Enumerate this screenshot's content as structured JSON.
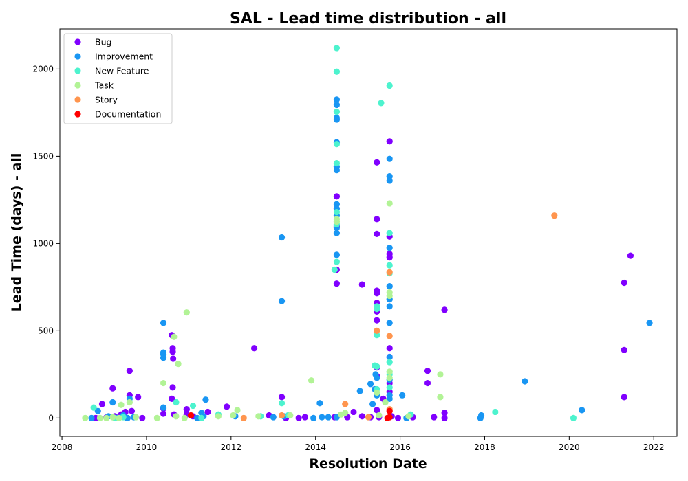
{
  "chart_data": {
    "type": "scatter",
    "title": "SAL - Lead time distribution - all",
    "xlabel": "Resolution Date",
    "ylabel": "Lead Time (days) - all",
    "xlim": [
      2007.95,
      2022.55
    ],
    "ylim": [
      -105,
      2230
    ],
    "xticks": [
      2008,
      2010,
      2012,
      2014,
      2016,
      2018,
      2020,
      2022
    ],
    "xtick_labels": [
      "2008",
      "2010",
      "2012",
      "2014",
      "2016",
      "2018",
      "2020",
      "2022"
    ],
    "yticks": [
      0,
      500,
      1000,
      1500,
      2000
    ],
    "ytick_labels": [
      "0",
      "500",
      "1000",
      "1500",
      "2000"
    ],
    "legend_position": "top-left",
    "series": [
      {
        "name": "Bug",
        "color": "#8000ff",
        "points": [
          [
            2008.8,
            0
          ],
          [
            2008.95,
            80
          ],
          [
            2009.05,
            3
          ],
          [
            2009.2,
            170
          ],
          [
            2009.25,
            10
          ],
          [
            2009.3,
            0
          ],
          [
            2009.4,
            20
          ],
          [
            2009.5,
            35
          ],
          [
            2009.55,
            0
          ],
          [
            2009.6,
            270
          ],
          [
            2009.6,
            130
          ],
          [
            2009.65,
            40
          ],
          [
            2009.8,
            120
          ],
          [
            2009.9,
            0
          ],
          [
            2010.4,
            55
          ],
          [
            2010.4,
            25
          ],
          [
            2010.6,
            475
          ],
          [
            2010.62,
            400
          ],
          [
            2010.62,
            380
          ],
          [
            2010.63,
            340
          ],
          [
            2010.62,
            175
          ],
          [
            2010.6,
            110
          ],
          [
            2010.65,
            20
          ],
          [
            2010.95,
            50
          ],
          [
            2010.95,
            20
          ],
          [
            2011.1,
            10
          ],
          [
            2011.45,
            35
          ],
          [
            2011.9,
            65
          ],
          [
            2012.55,
            400
          ],
          [
            2012.9,
            15
          ],
          [
            2013.2,
            120
          ],
          [
            2013.3,
            0
          ],
          [
            2013.6,
            0
          ],
          [
            2013.75,
            5
          ],
          [
            2014.45,
            5
          ],
          [
            2014.5,
            1270
          ],
          [
            2014.5,
            1100
          ],
          [
            2014.5,
            850
          ],
          [
            2014.5,
            770
          ],
          [
            2014.75,
            5
          ],
          [
            2014.9,
            35
          ],
          [
            2015.1,
            765
          ],
          [
            2015.1,
            10
          ],
          [
            2015.3,
            5
          ],
          [
            2015.45,
            1465
          ],
          [
            2015.45,
            1140
          ],
          [
            2015.45,
            1055
          ],
          [
            2015.45,
            730
          ],
          [
            2015.45,
            715
          ],
          [
            2015.45,
            660
          ],
          [
            2015.45,
            610
          ],
          [
            2015.45,
            560
          ],
          [
            2015.45,
            290
          ],
          [
            2015.45,
            240
          ],
          [
            2015.45,
            45
          ],
          [
            2015.5,
            5
          ],
          [
            2015.6,
            110
          ],
          [
            2015.75,
            1585
          ],
          [
            2015.75,
            1040
          ],
          [
            2015.75,
            940
          ],
          [
            2015.75,
            920
          ],
          [
            2015.75,
            400
          ],
          [
            2015.75,
            350
          ],
          [
            2015.75,
            200
          ],
          [
            2015.75,
            150
          ],
          [
            2015.8,
            10
          ],
          [
            2015.95,
            0
          ],
          [
            2016.3,
            5
          ],
          [
            2016.65,
            200
          ],
          [
            2016.65,
            270
          ],
          [
            2016.8,
            5
          ],
          [
            2017.05,
            620
          ],
          [
            2017.05,
            30
          ],
          [
            2017.05,
            0
          ],
          [
            2021.3,
            775
          ],
          [
            2021.3,
            390
          ],
          [
            2021.3,
            120
          ],
          [
            2021.45,
            930
          ]
        ]
      },
      {
        "name": "Improvement",
        "color": "#1996f3",
        "points": [
          [
            2008.7,
            0
          ],
          [
            2008.85,
            40
          ],
          [
            2009.1,
            10
          ],
          [
            2009.2,
            90
          ],
          [
            2009.3,
            0
          ],
          [
            2009.45,
            15
          ],
          [
            2009.55,
            0
          ],
          [
            2009.6,
            110
          ],
          [
            2009.7,
            5
          ],
          [
            2010.4,
            545
          ],
          [
            2010.4,
            375
          ],
          [
            2010.4,
            365
          ],
          [
            2010.4,
            345
          ],
          [
            2010.4,
            60
          ],
          [
            2011.2,
            0
          ],
          [
            2011.3,
            30
          ],
          [
            2011.4,
            105
          ],
          [
            2011.35,
            10
          ],
          [
            2012.1,
            10
          ],
          [
            2013.2,
            1035
          ],
          [
            2013.2,
            670
          ],
          [
            2013.0,
            5
          ],
          [
            2013.25,
            10
          ],
          [
            2013.95,
            0
          ],
          [
            2014.1,
            85
          ],
          [
            2014.15,
            5
          ],
          [
            2014.3,
            5
          ],
          [
            2014.5,
            1825
          ],
          [
            2014.5,
            1795
          ],
          [
            2014.5,
            1720
          ],
          [
            2014.5,
            1710
          ],
          [
            2014.5,
            1580
          ],
          [
            2014.5,
            1440
          ],
          [
            2014.5,
            1420
          ],
          [
            2014.5,
            1225
          ],
          [
            2014.5,
            1200
          ],
          [
            2014.5,
            1160
          ],
          [
            2014.5,
            1090
          ],
          [
            2014.5,
            1060
          ],
          [
            2014.5,
            935
          ],
          [
            2014.5,
            5
          ],
          [
            2015.05,
            155
          ],
          [
            2015.3,
            195
          ],
          [
            2015.35,
            80
          ],
          [
            2015.4,
            165
          ],
          [
            2015.42,
            250
          ],
          [
            2015.45,
            230
          ],
          [
            2015.45,
            130
          ],
          [
            2015.75,
            1485
          ],
          [
            2015.75,
            1385
          ],
          [
            2015.75,
            1360
          ],
          [
            2015.75,
            975
          ],
          [
            2015.75,
            755
          ],
          [
            2015.75,
            680
          ],
          [
            2015.75,
            640
          ],
          [
            2015.75,
            545
          ],
          [
            2015.75,
            350
          ],
          [
            2015.75,
            220
          ],
          [
            2015.75,
            130
          ],
          [
            2015.75,
            110
          ],
          [
            2016.05,
            130
          ],
          [
            2016.15,
            0
          ],
          [
            2017.9,
            0
          ],
          [
            2017.92,
            15
          ],
          [
            2018.95,
            210
          ],
          [
            2020.3,
            45
          ],
          [
            2021.9,
            545
          ]
        ]
      },
      {
        "name": "New Feature",
        "color": "#4df3ce",
        "points": [
          [
            2008.75,
            60
          ],
          [
            2009.25,
            0
          ],
          [
            2009.45,
            5
          ],
          [
            2010.7,
            90
          ],
          [
            2011.1,
            70
          ],
          [
            2011.3,
            0
          ],
          [
            2011.7,
            20
          ],
          [
            2012.7,
            10
          ],
          [
            2013.2,
            85
          ],
          [
            2013.35,
            15
          ],
          [
            2014.45,
            850
          ],
          [
            2014.5,
            2120
          ],
          [
            2014.5,
            1985
          ],
          [
            2014.5,
            1755
          ],
          [
            2014.5,
            1570
          ],
          [
            2014.5,
            1460
          ],
          [
            2014.5,
            1180
          ],
          [
            2014.5,
            1110
          ],
          [
            2014.5,
            895
          ],
          [
            2015.4,
            300
          ],
          [
            2015.45,
            640
          ],
          [
            2015.45,
            625
          ],
          [
            2015.45,
            475
          ],
          [
            2015.45,
            295
          ],
          [
            2015.45,
            165
          ],
          [
            2015.55,
            1805
          ],
          [
            2015.75,
            1905
          ],
          [
            2015.75,
            1060
          ],
          [
            2015.75,
            875
          ],
          [
            2015.75,
            830
          ],
          [
            2015.75,
            320
          ],
          [
            2015.75,
            265
          ],
          [
            2015.75,
            250
          ],
          [
            2015.75,
            175
          ],
          [
            2016.25,
            20
          ],
          [
            2018.25,
            35
          ],
          [
            2020.1,
            0
          ]
        ]
      },
      {
        "name": "Task",
        "color": "#b2f396",
        "points": [
          [
            2008.55,
            0
          ],
          [
            2008.9,
            0
          ],
          [
            2009.05,
            0
          ],
          [
            2009.2,
            5
          ],
          [
            2009.35,
            0
          ],
          [
            2009.4,
            75
          ],
          [
            2009.6,
            90
          ],
          [
            2009.75,
            5
          ],
          [
            2010.25,
            0
          ],
          [
            2010.4,
            200
          ],
          [
            2010.65,
            465
          ],
          [
            2010.75,
            310
          ],
          [
            2010.95,
            605
          ],
          [
            2010.9,
            0
          ],
          [
            2010.7,
            10
          ],
          [
            2011.7,
            10
          ],
          [
            2012.05,
            15
          ],
          [
            2012.15,
            45
          ],
          [
            2012.65,
            10
          ],
          [
            2013.4,
            15
          ],
          [
            2013.9,
            215
          ],
          [
            2014.6,
            20
          ],
          [
            2014.7,
            30
          ],
          [
            2014.5,
            1140
          ],
          [
            2014.5,
            1125
          ],
          [
            2015.45,
            145
          ],
          [
            2015.5,
            15
          ],
          [
            2015.65,
            90
          ],
          [
            2015.75,
            1230
          ],
          [
            2015.75,
            720
          ],
          [
            2015.75,
            700
          ],
          [
            2015.75,
            230
          ],
          [
            2015.75,
            265
          ],
          [
            2016.2,
            10
          ],
          [
            2016.95,
            250
          ],
          [
            2016.95,
            120
          ]
        ]
      },
      {
        "name": "Story",
        "color": "#ff954e",
        "points": [
          [
            2012.3,
            0
          ],
          [
            2013.2,
            15
          ],
          [
            2014.7,
            80
          ],
          [
            2015.25,
            5
          ],
          [
            2015.45,
            500
          ],
          [
            2015.75,
            835
          ],
          [
            2015.75,
            470
          ],
          [
            2015.75,
            50
          ],
          [
            2019.65,
            1160
          ]
        ]
      },
      {
        "name": "Documentation",
        "color": "#ff0000",
        "points": [
          [
            2011.05,
            15
          ],
          [
            2015.7,
            0
          ],
          [
            2015.75,
            5
          ],
          [
            2015.75,
            40
          ]
        ]
      }
    ]
  }
}
